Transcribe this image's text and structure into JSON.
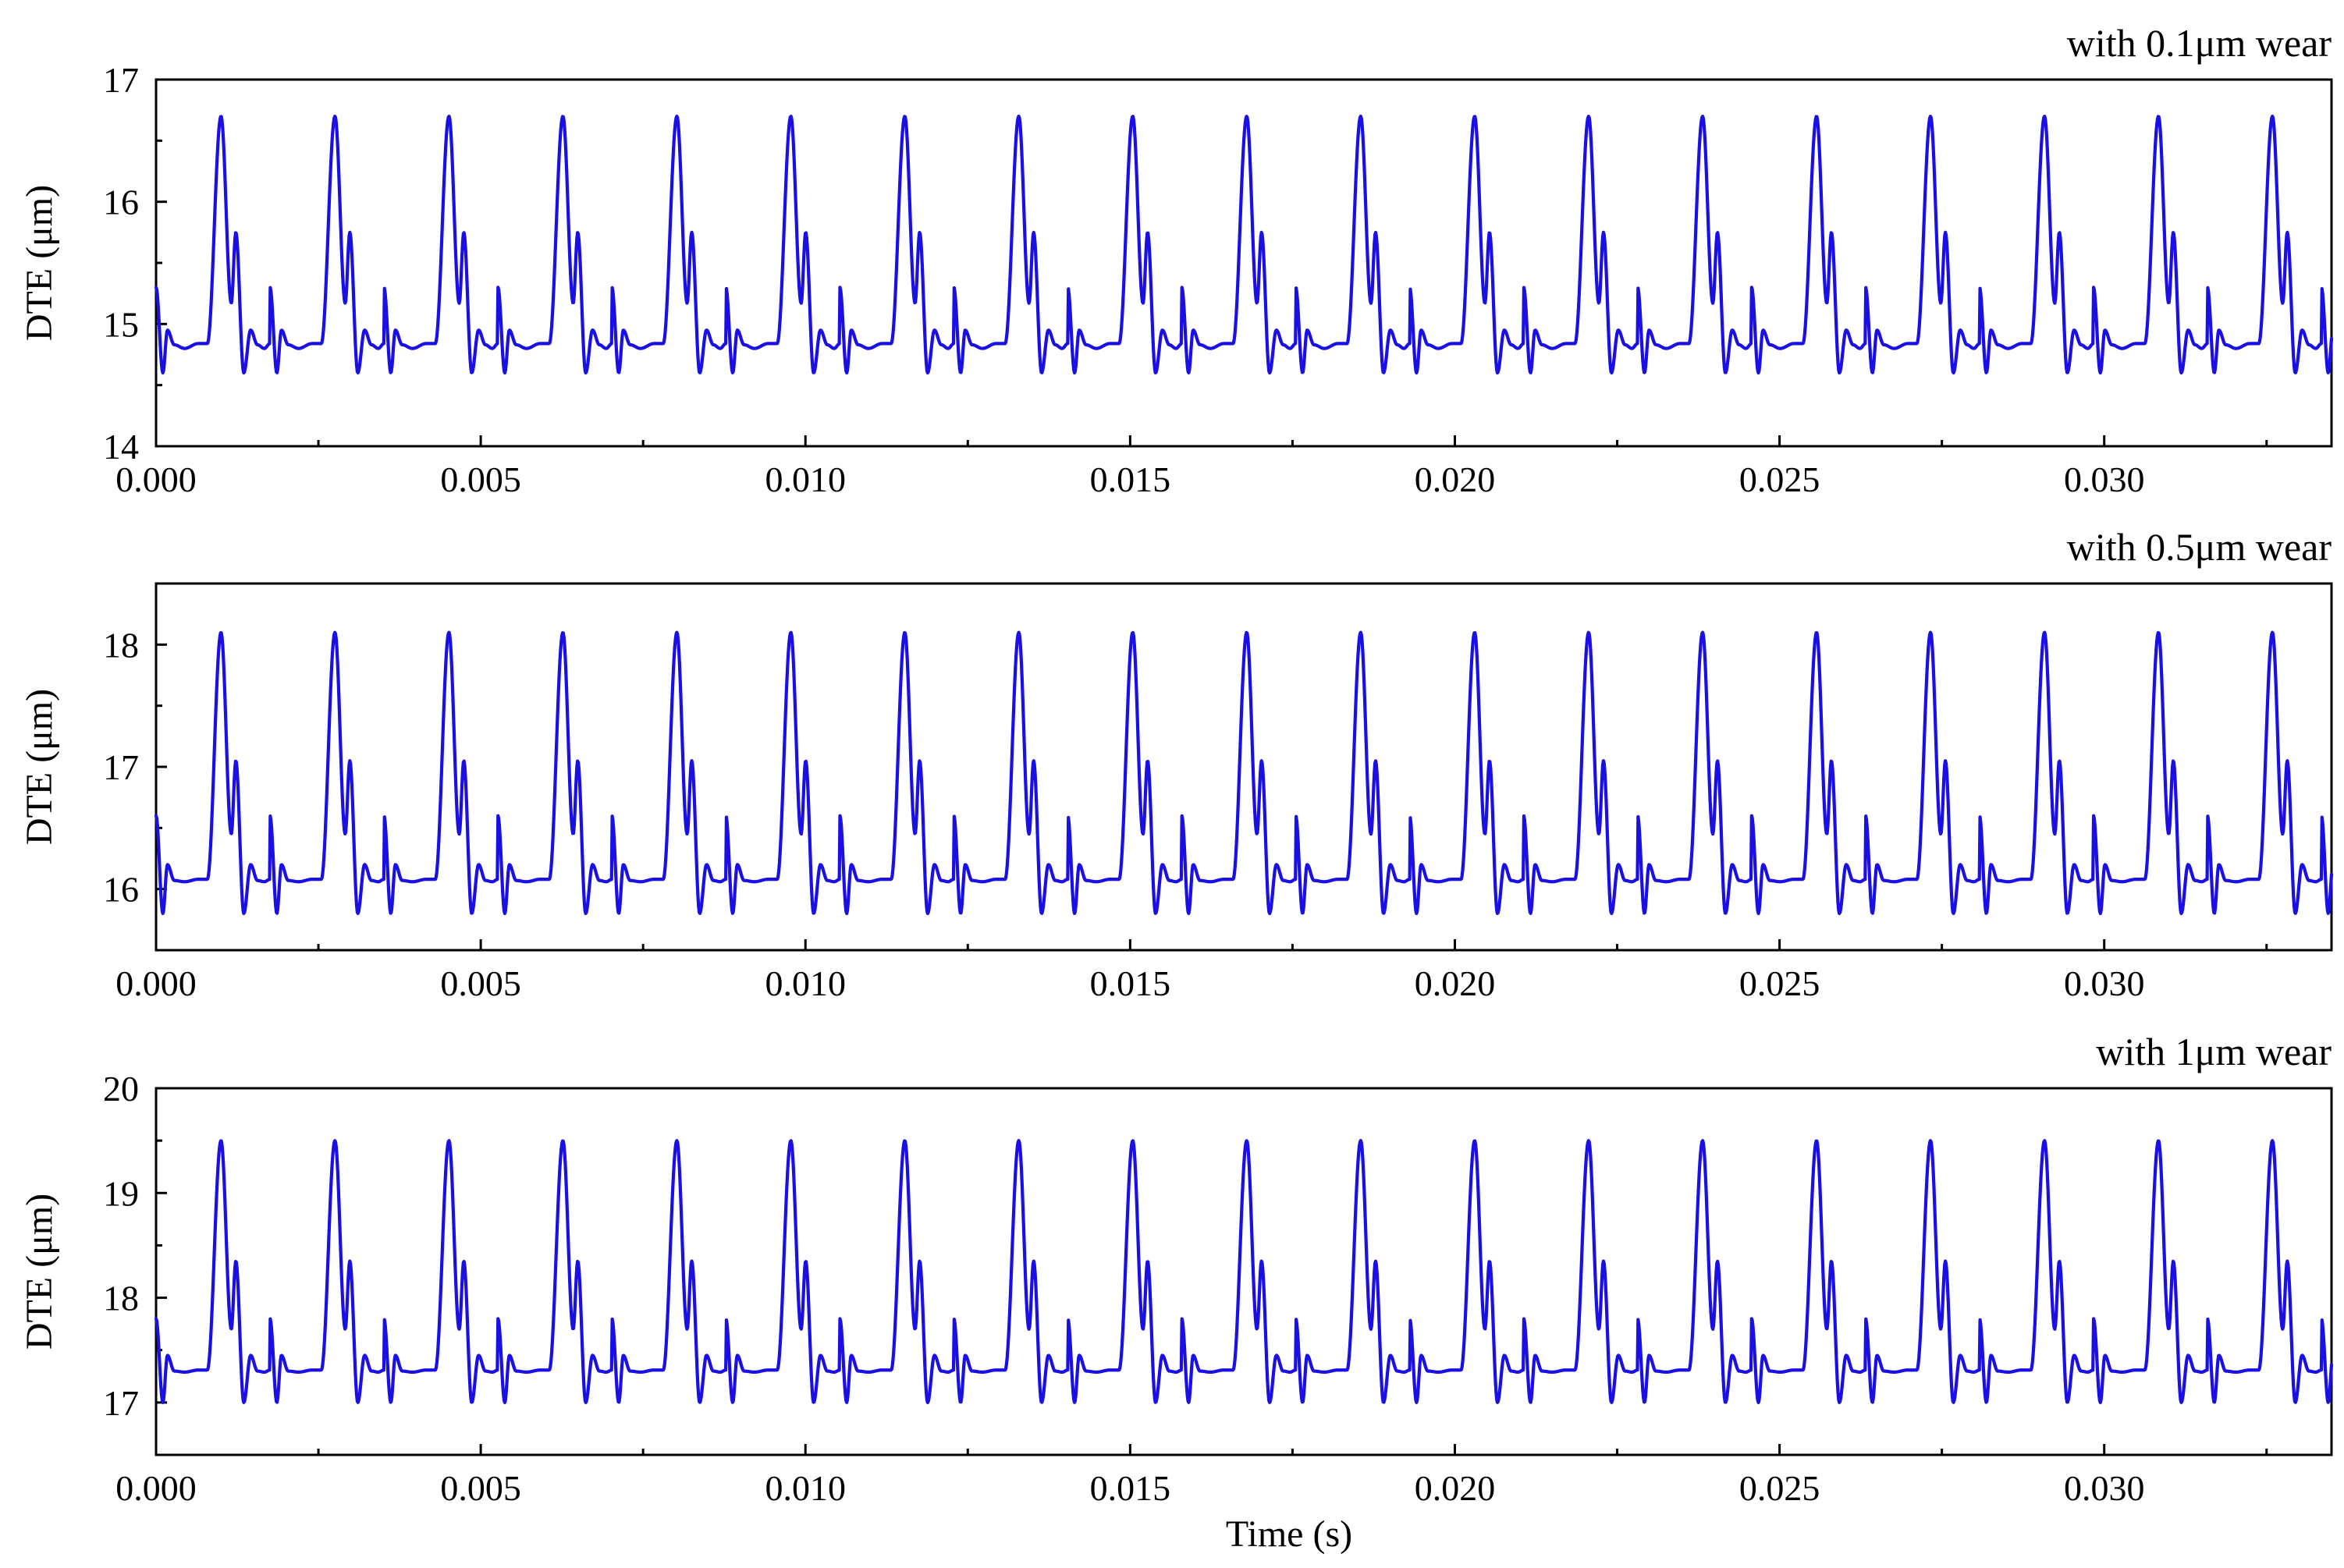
{
  "figure": {
    "xlabel": "Time (s)"
  },
  "chart_data": [
    {
      "type": "line",
      "title": "with 0.1μm wear",
      "xlabel": "",
      "ylabel": "DTE (μm)",
      "xlim": [
        0,
        0.0335
      ],
      "ylim": [
        14,
        17
      ],
      "x_ticks": [
        "0.000",
        "0.005",
        "0.010",
        "0.015",
        "0.020",
        "0.025",
        "0.030"
      ],
      "y_ticks": [
        "14",
        "15",
        "16",
        "17"
      ],
      "grid": false,
      "color": "#1a10e6",
      "period_s": 0.001755,
      "series": [
        {
          "values_per_period": {
            "phase": [
              0,
              0.06,
              0.1,
              0.16,
              0.25,
              0.37,
              0.45,
              0.57,
              0.66,
              0.7,
              0.77,
              0.83,
              0.89,
              0.95,
              1.0
            ],
            "dte": [
              15.3,
              14.6,
              14.95,
              14.83,
              14.8,
              14.84,
              14.84,
              16.7,
              15.17,
              15.75,
              14.6,
              14.95,
              14.83,
              14.8,
              14.84
            ]
          },
          "peak": 16.7,
          "secondary_peak": 15.75,
          "trough": 14.6,
          "baseline": 14.83
        }
      ]
    },
    {
      "type": "line",
      "title": "with 0.5μm wear",
      "xlabel": "",
      "ylabel": "DTE (μm)",
      "xlim": [
        0,
        0.0335
      ],
      "ylim": [
        15.5,
        18.5
      ],
      "x_ticks": [
        "0.000",
        "0.005",
        "0.010",
        "0.015",
        "0.020",
        "0.025",
        "0.030"
      ],
      "y_ticks": [
        "16",
        "17",
        "18"
      ],
      "grid": false,
      "color": "#1a10e6",
      "period_s": 0.001755,
      "series": [
        {
          "values_per_period": {
            "phase": [
              0,
              0.06,
              0.1,
              0.16,
              0.25,
              0.37,
              0.45,
              0.57,
              0.66,
              0.7,
              0.77,
              0.83,
              0.89,
              0.95,
              1.0
            ],
            "dte": [
              16.6,
              15.8,
              16.2,
              16.07,
              16.06,
              16.08,
              16.08,
              18.1,
              16.45,
              17.05,
              15.8,
              16.2,
              16.07,
              16.06,
              16.08
            ]
          },
          "peak": 18.1,
          "secondary_peak": 17.05,
          "trough": 15.8,
          "baseline": 16.07
        }
      ]
    },
    {
      "type": "line",
      "title": "with 1μm wear",
      "xlabel": "Time (s)",
      "ylabel": "DTE (μm)",
      "xlim": [
        0,
        0.0335
      ],
      "ylim": [
        16.5,
        20
      ],
      "x_ticks": [
        "0.000",
        "0.005",
        "0.010",
        "0.015",
        "0.020",
        "0.025",
        "0.030"
      ],
      "y_ticks": [
        "17",
        "18",
        "19",
        "20"
      ],
      "grid": false,
      "color": "#1a10e6",
      "period_s": 0.001755,
      "series": [
        {
          "values_per_period": {
            "phase": [
              0,
              0.06,
              0.1,
              0.16,
              0.25,
              0.37,
              0.45,
              0.57,
              0.66,
              0.7,
              0.77,
              0.83,
              0.89,
              0.95,
              1.0
            ],
            "dte": [
              17.8,
              17.0,
              17.45,
              17.3,
              17.29,
              17.31,
              17.31,
              19.5,
              17.7,
              18.35,
              17.0,
              17.45,
              17.3,
              17.29,
              17.31
            ]
          },
          "peak": 19.5,
          "secondary_peak": 18.35,
          "trough": 17.0,
          "baseline": 17.3
        }
      ]
    }
  ]
}
